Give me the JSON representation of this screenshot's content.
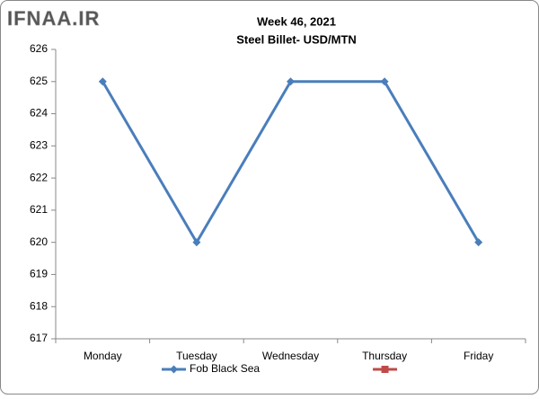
{
  "chart_data": {
    "type": "line",
    "watermark": "IFNAA.IR",
    "title": "Week 46, 2021",
    "subtitle": "Steel Billet- USD/MTN",
    "categories": [
      "Monday",
      "Tuesday",
      "Wednesday",
      "Thursday",
      "Friday"
    ],
    "series": [
      {
        "name": "Fob Black Sea",
        "color": "#4a7ebb",
        "values": [
          625,
          620,
          625,
          625,
          620
        ]
      },
      {
        "name": null,
        "color": "#be4b48",
        "values": [
          null,
          null,
          null,
          null,
          null
        ]
      }
    ],
    "ylim": [
      617,
      626
    ],
    "yticks": [
      617,
      618,
      619,
      620,
      621,
      622,
      623,
      624,
      625,
      626
    ]
  }
}
